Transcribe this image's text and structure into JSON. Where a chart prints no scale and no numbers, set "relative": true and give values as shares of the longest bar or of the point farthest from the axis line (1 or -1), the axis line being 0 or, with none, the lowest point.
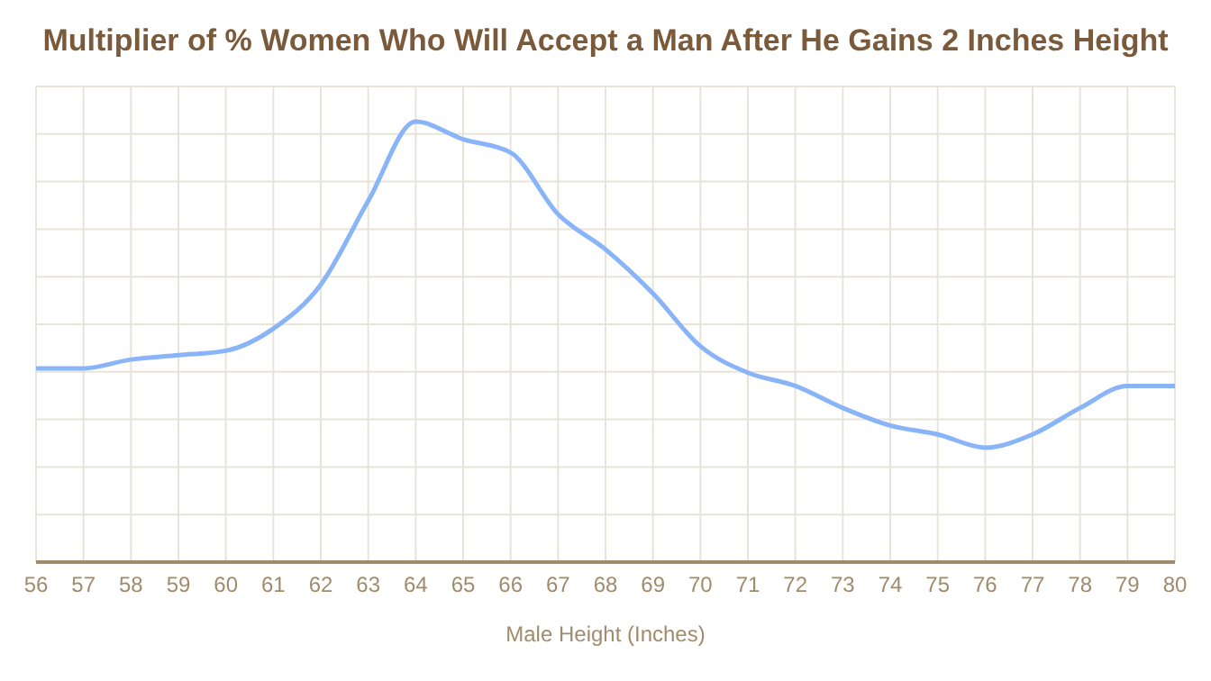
{
  "chart_data": {
    "type": "line",
    "title": "Multiplier of % Women Who Will Accept a Man After He Gains 2 Inches Height",
    "xlabel": "Male Height (Inches)",
    "relative": true,
    "x": [
      56,
      57,
      58,
      59,
      60,
      61,
      62,
      63,
      64,
      65,
      66,
      67,
      68,
      69,
      70,
      71,
      72,
      73,
      74,
      75,
      76,
      77,
      78,
      79,
      80
    ],
    "series": [
      {
        "color": "#8ab4f8",
        "values": [
          0.44,
          0.44,
          0.46,
          0.47,
          0.48,
          0.53,
          0.63,
          0.82,
          1,
          0.96,
          0.93,
          0.79,
          0.71,
          0.61,
          0.49,
          0.43,
          0.4,
          0.35,
          0.31,
          0.29,
          0.26,
          0.29,
          0.35,
          0.4,
          0.4
        ]
      }
    ],
    "xlim": [
      56,
      80
    ],
    "xticks": [
      56,
      57,
      58,
      59,
      60,
      61,
      62,
      63,
      64,
      65,
      66,
      67,
      68,
      69,
      70,
      71,
      72,
      73,
      74,
      75,
      76,
      77,
      78,
      79,
      80
    ],
    "grid": true,
    "marker": "none",
    "line_style": "solid"
  }
}
